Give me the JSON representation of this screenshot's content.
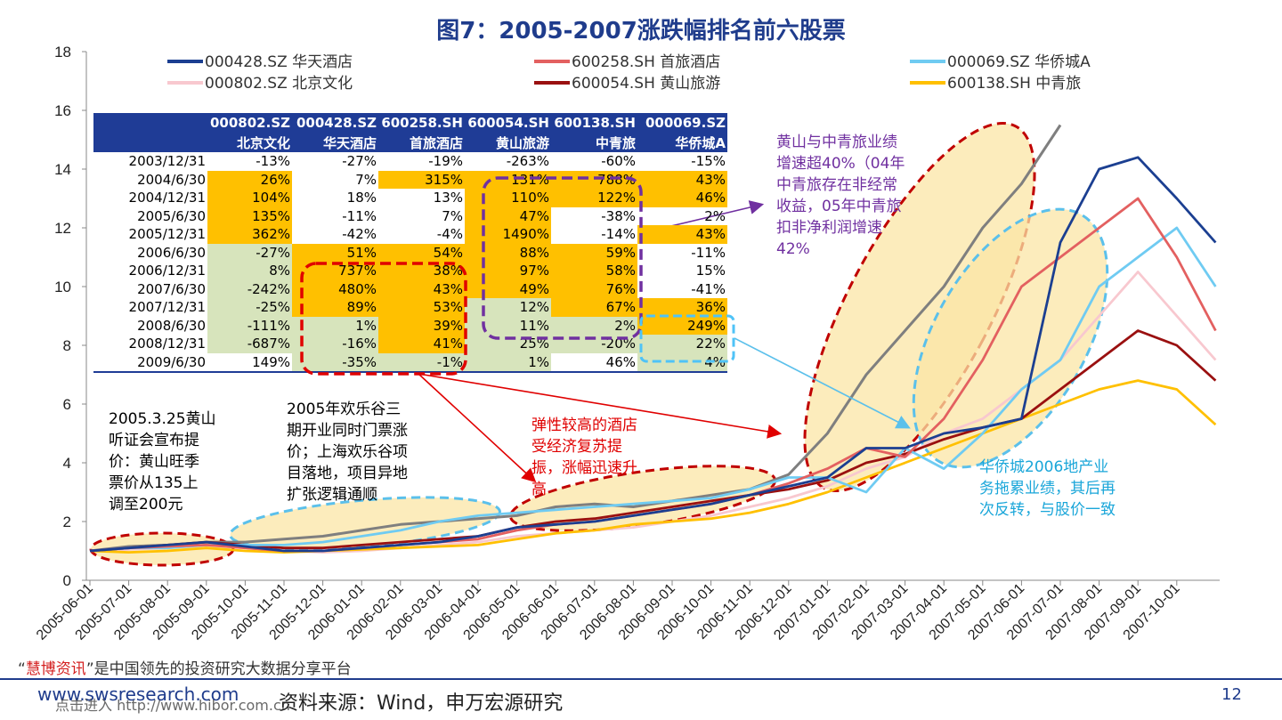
{
  "title": "图7：2005-2007涨跌幅排名前六股票",
  "page_number": "12",
  "source": "资料来源：Wind，申万宏源研究",
  "watermark": {
    "line1_quote_open": "“",
    "line1_brand": "慧博资讯",
    "line1_rest": "”是中国领先的投资研究大数据分享平台",
    "line2": "www.swsresearch.com",
    "line3": "点击进入 http://www.hibor.com.cn"
  },
  "colors": {
    "000428": "#1b3f91",
    "000802": "#f8c8cf",
    "600258": "#e36060",
    "600054": "#9a1010",
    "000069": "#6fcbf2",
    "600138": "#ffc000",
    "extra_grey": "#7f7f7f",
    "table_header": "#1f3c96",
    "orange": "#ffc000",
    "green": "#d7e4bc"
  },
  "annotations": {
    "a1": "2005.3.25黄山\n听证会宣布提\n价：黄山旺季\n票价从135上\n调至200元",
    "a2": "2005年欢乐谷三\n期开业同时门票涨\n价；上海欢乐谷项\n目落地，项目异地\n扩张逻辑通顺",
    "a3": "弹性较高的酒店\n受经济复苏提\n振，涨幅迅速升\n高",
    "a4": "黄山与中青旅业绩\n增速超40%（04年\n中青旅存在非经常\n收益，05年中青旅\n扣非净利润增速\n42%",
    "a5": "华侨城2006地产业\n务拖累业绩，其后再\n次反转，与股价一致"
  },
  "table": {
    "headers_code": [
      "",
      "000802.SZ",
      "000428.SZ",
      "600258.SH",
      "600054.SH",
      "600138.SH",
      "000069.SZ"
    ],
    "headers_name": [
      "",
      "北京文化",
      "华天酒店",
      "首旅酒店",
      "黄山旅游",
      "中青旅",
      "华侨城A"
    ],
    "rows": [
      [
        "2003/12/31",
        "-13%",
        "-27%",
        "-19%",
        "-263%",
        "-60%",
        "-15%"
      ],
      [
        "2004/6/30",
        "26%",
        "7%",
        "315%",
        "131%",
        "788%",
        "43%"
      ],
      [
        "2004/12/31",
        "104%",
        "18%",
        "13%",
        "110%",
        "122%",
        "46%"
      ],
      [
        "2005/6/30",
        "135%",
        "-11%",
        "7%",
        "47%",
        "-38%",
        "2%"
      ],
      [
        "2005/12/31",
        "362%",
        "-42%",
        "-4%",
        "1490%",
        "-14%",
        "43%"
      ],
      [
        "2006/6/30",
        "-27%",
        "51%",
        "54%",
        "88%",
        "59%",
        "-11%"
      ],
      [
        "2006/12/31",
        "8%",
        "737%",
        "38%",
        "97%",
        "58%",
        "15%"
      ],
      [
        "2007/6/30",
        "-242%",
        "480%",
        "43%",
        "49%",
        "76%",
        "-41%"
      ],
      [
        "2007/12/31",
        "-25%",
        "89%",
        "53%",
        "12%",
        "67%",
        "36%"
      ],
      [
        "2008/6/30",
        "-111%",
        "1%",
        "39%",
        "11%",
        "2%",
        "249%"
      ],
      [
        "2008/12/31",
        "-687%",
        "-16%",
        "41%",
        "25%",
        "-20%",
        "22%"
      ],
      [
        "2009/6/30",
        "149%",
        "-35%",
        "-1%",
        "1%",
        "46%",
        "4%"
      ]
    ],
    "fills": [
      [
        "",
        "",
        "",
        "",
        "",
        "",
        ""
      ],
      [
        "",
        "O",
        "",
        "O",
        "O",
        "O",
        "O"
      ],
      [
        "",
        "O",
        "",
        "",
        "O",
        "O",
        "O"
      ],
      [
        "",
        "O",
        "",
        "",
        "O",
        "",
        ""
      ],
      [
        "",
        "O",
        "",
        "",
        "O",
        "",
        "O"
      ],
      [
        "",
        "G",
        "O",
        "O",
        "O",
        "O",
        ""
      ],
      [
        "",
        "G",
        "O",
        "O",
        "O",
        "O",
        ""
      ],
      [
        "",
        "G",
        "O",
        "O",
        "O",
        "O",
        ""
      ],
      [
        "",
        "G",
        "O",
        "O",
        "G",
        "O",
        "O"
      ],
      [
        "",
        "G",
        "G",
        "O",
        "G",
        "G",
        "O"
      ],
      [
        "",
        "G",
        "G",
        "O",
        "G",
        "G",
        "G"
      ],
      [
        "",
        "",
        "G",
        "G",
        "G",
        "",
        "G"
      ]
    ]
  },
  "chart_data": {
    "type": "line",
    "ylim": [
      0,
      18
    ],
    "yticks": [
      0,
      2,
      4,
      6,
      8,
      10,
      12,
      14,
      16,
      18
    ],
    "x_tick_labels": [
      "2005-06-01",
      "2005-07-01",
      "2005-08-01",
      "2005-09-01",
      "2005-10-01",
      "2005-11-01",
      "2005-12-01",
      "2006-01-01",
      "2006-02-01",
      "2006-03-01",
      "2006-04-01",
      "2006-05-01",
      "2006-06-01",
      "2006-07-01",
      "2006-08-01",
      "2006-09-01",
      "2006-10-01",
      "2006-11-01",
      "2006-12-01",
      "2007-01-01",
      "2007-02-01",
      "2007-03-01",
      "2007-04-01",
      "2007-05-01",
      "2007-06-01",
      "2007-07-01",
      "2007-08-01",
      "2007-09-01",
      "2007-10-01"
    ],
    "x_months": [
      "2005-06",
      "2005-07",
      "2005-08",
      "2005-09",
      "2005-10",
      "2005-11",
      "2005-12",
      "2006-01",
      "2006-02",
      "2006-03",
      "2006-04",
      "2006-05",
      "2006-06",
      "2006-07",
      "2006-08",
      "2006-09",
      "2006-10",
      "2006-11",
      "2006-12",
      "2007-01",
      "2007-02",
      "2007-03",
      "2007-04",
      "2007-05",
      "2007-06",
      "2007-07",
      "2007-08",
      "2007-09",
      "2007-10",
      "2007-11"
    ],
    "legend": [
      {
        "key": "000428",
        "label": "000428.SZ 华天酒店"
      },
      {
        "key": "600258",
        "label": "600258.SH 首旅酒店"
      },
      {
        "key": "000069",
        "label": "000069.SZ 华侨城A"
      },
      {
        "key": "000802",
        "label": "000802.SZ 北京文化"
      },
      {
        "key": "600054",
        "label": "600054.SH 黄山旅游"
      },
      {
        "key": "600138",
        "label": "600138.SH 中青旅"
      }
    ],
    "series": [
      {
        "key": "000428",
        "name": "000428.SZ 华天酒店",
        "values": [
          1.0,
          1.1,
          1.2,
          1.3,
          1.15,
          1.0,
          1.0,
          1.1,
          1.2,
          1.3,
          1.5,
          1.8,
          1.9,
          2.0,
          2.2,
          2.4,
          2.6,
          2.9,
          3.2,
          3.5,
          4.5,
          4.5,
          5.0,
          5.2,
          5.5,
          11.5,
          14.0,
          14.4,
          13.0,
          11.5
        ]
      },
      {
        "key": "000802",
        "name": "000802.SZ 北京文化",
        "values": [
          1.0,
          1.05,
          1.1,
          1.2,
          1.1,
          1.0,
          0.95,
          1.0,
          1.1,
          1.2,
          1.3,
          1.5,
          1.6,
          1.7,
          1.8,
          2.0,
          2.2,
          2.5,
          2.8,
          3.2,
          3.8,
          4.2,
          5.0,
          5.5,
          6.5,
          7.5,
          9.0,
          10.5,
          9.0,
          7.5
        ]
      },
      {
        "key": "600258",
        "name": "600258.SH 首旅酒店",
        "values": [
          1.0,
          1.1,
          1.15,
          1.2,
          1.1,
          1.0,
          1.0,
          1.1,
          1.2,
          1.3,
          1.4,
          1.7,
          1.9,
          2.0,
          2.2,
          2.4,
          2.6,
          2.9,
          3.3,
          3.8,
          4.5,
          4.2,
          5.5,
          7.5,
          10.0,
          11.0,
          12.0,
          13.0,
          11.0,
          8.5
        ]
      },
      {
        "key": "600054",
        "name": "600054.SH 黄山旅游",
        "values": [
          1.0,
          1.1,
          1.2,
          1.3,
          1.2,
          1.1,
          1.1,
          1.2,
          1.3,
          1.4,
          1.5,
          1.8,
          2.0,
          2.1,
          2.3,
          2.5,
          2.7,
          2.9,
          3.1,
          3.4,
          4.0,
          4.3,
          4.8,
          5.2,
          5.5,
          6.5,
          7.5,
          8.5,
          8.0,
          6.8
        ]
      },
      {
        "key": "000069",
        "name": "000069.SZ 华侨城A",
        "values": [
          1.0,
          1.1,
          1.1,
          1.2,
          1.2,
          1.2,
          1.3,
          1.5,
          1.7,
          2.0,
          2.2,
          2.3,
          2.4,
          2.5,
          2.6,
          2.7,
          2.8,
          3.1,
          3.5,
          3.5,
          3.0,
          4.5,
          3.8,
          5.0,
          6.5,
          7.5,
          10.0,
          11.0,
          12.0,
          10.0
        ]
      },
      {
        "key": "600138",
        "name": "600138.SH 中青旅",
        "values": [
          1.0,
          0.95,
          1.0,
          1.1,
          1.0,
          0.95,
          1.0,
          1.05,
          1.1,
          1.15,
          1.2,
          1.4,
          1.6,
          1.7,
          1.9,
          2.0,
          2.1,
          2.3,
          2.6,
          3.0,
          3.5,
          4.0,
          4.5,
          5.0,
          5.5,
          6.0,
          6.5,
          6.8,
          6.5,
          5.3
        ]
      },
      {
        "key": "extra_grey",
        "name": "",
        "values": [
          1.0,
          1.15,
          1.2,
          1.3,
          1.3,
          1.4,
          1.5,
          1.7,
          1.9,
          2.0,
          2.1,
          2.2,
          2.5,
          2.6,
          2.5,
          2.7,
          2.9,
          3.1,
          3.6,
          5.0,
          7.0,
          8.5,
          10.0,
          12.0,
          13.5,
          15.5,
          null,
          null,
          null,
          null
        ]
      }
    ]
  }
}
